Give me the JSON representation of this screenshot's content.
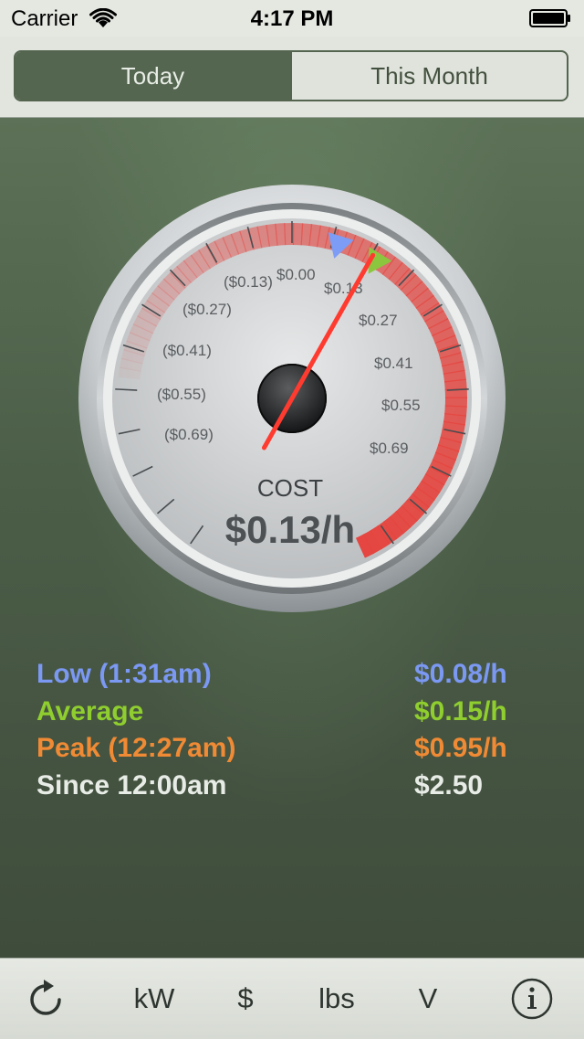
{
  "status_bar": {
    "carrier": "Carrier",
    "time": "4:17 PM"
  },
  "segmented": {
    "today": "Today",
    "this_month": "This Month",
    "selected": "Today"
  },
  "gauge": {
    "title": "COST",
    "reading": "$0.13/h",
    "left_labels": [
      "($0.13)",
      "($0.27)",
      "($0.41)",
      "($0.55)",
      "($0.69)"
    ],
    "top_label": "$0.00",
    "right_labels": [
      "$0.13",
      "$0.27",
      "$0.41",
      "$0.55",
      "$0.69"
    ],
    "needle_value": 0.13,
    "low_marker_value": 0.08,
    "average_marker_value": 0.15,
    "colors": {
      "needle": "#ff3b30",
      "arc": "#e5453f",
      "low_marker": "#7d9cf5",
      "average_marker": "#8cc63f"
    }
  },
  "stats": [
    {
      "label": "Low (1:31am)",
      "value": "$0.08/h",
      "color": "#7b98f2"
    },
    {
      "label": "Average",
      "value": "$0.15/h",
      "color": "#8fce2e"
    },
    {
      "label": "Peak (12:27am)",
      "value": "$0.95/h",
      "color": "#f08a34"
    },
    {
      "label": "Since 12:00am",
      "value": "$2.50",
      "color": "#e8ece6"
    }
  ],
  "tab_bar": {
    "refresh_icon": "refresh-icon",
    "kw": "kW",
    "dollar": "$",
    "lbs": "lbs",
    "v": "V",
    "info_icon": "info-icon"
  }
}
